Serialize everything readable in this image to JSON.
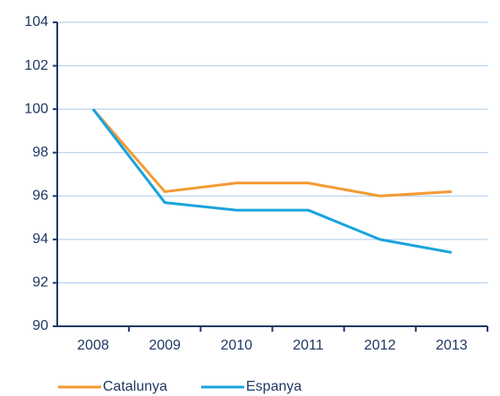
{
  "chart_data": {
    "type": "line",
    "categories": [
      "2008",
      "2009",
      "2010",
      "2011",
      "2012",
      "2013"
    ],
    "series": [
      {
        "name": "Catalunya",
        "color": "#f39a32",
        "values": [
          100,
          96.2,
          96.6,
          96.6,
          96.0,
          96.2
        ]
      },
      {
        "name": "Espanya",
        "color": "#1aa3dc",
        "values": [
          100,
          95.7,
          95.35,
          95.35,
          94.0,
          93.4
        ]
      }
    ],
    "ylim": [
      90,
      104
    ],
    "yticks": [
      90,
      92,
      94,
      96,
      98,
      100,
      102,
      104
    ],
    "grid": true,
    "legend": "bottom"
  }
}
